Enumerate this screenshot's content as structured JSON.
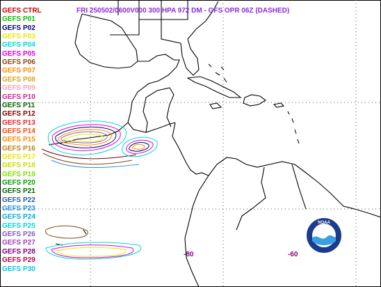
{
  "title": "FRI 250502/0600V000  300 HPA 972 DM - GFS OPR 06Z (DASHED)",
  "legend": [
    {
      "label": "GEFS CTRL",
      "color": "#d00000"
    },
    {
      "label": "GEFS P01",
      "color": "#00c000"
    },
    {
      "label": "GEFS P02",
      "color": "#000080"
    },
    {
      "label": "GEFS P03",
      "color": "#e8e800"
    },
    {
      "label": "GEFS P04",
      "color": "#00d8d8"
    },
    {
      "label": "GEFS P05",
      "color": "#e000e0"
    },
    {
      "label": "GEFS P06",
      "color": "#8b4513"
    },
    {
      "label": "GEFS P07",
      "color": "#ff8c00"
    },
    {
      "label": "GEFS P08",
      "color": "#daa520"
    },
    {
      "label": "GEFS P09",
      "color": "#ffa0b4"
    },
    {
      "label": "GEFS P10",
      "color": "#d02090"
    },
    {
      "label": "GEFS P11",
      "color": "#006400"
    },
    {
      "label": "GEFS P12",
      "color": "#800000"
    },
    {
      "label": "GEFS P13",
      "color": "#ff2020"
    },
    {
      "label": "GEFS P14",
      "color": "#ff4500"
    },
    {
      "label": "GEFS P15",
      "color": "#ff8c00"
    },
    {
      "label": "GEFS P16",
      "color": "#b8860b"
    },
    {
      "label": "GEFS P17",
      "color": "#e8e800"
    },
    {
      "label": "GEFS P18",
      "color": "#c8e000"
    },
    {
      "label": "GEFS P19",
      "color": "#80e000"
    },
    {
      "label": "GEFS P20",
      "color": "#00a000"
    },
    {
      "label": "GEFS P21",
      "color": "#006400"
    },
    {
      "label": "GEFS P22",
      "color": "#2060a0"
    },
    {
      "label": "GEFS P23",
      "color": "#2090e0"
    },
    {
      "label": "GEFS P24",
      "color": "#00b0e0"
    },
    {
      "label": "GEFS P25",
      "color": "#00d8d8"
    },
    {
      "label": "GEFS P26",
      "color": "#8060c0"
    },
    {
      "label": "GEFS P27",
      "color": "#a040c0"
    },
    {
      "label": "GEFS P28",
      "color": "#800080"
    },
    {
      "label": "GEFS P29",
      "color": "#c00040"
    },
    {
      "label": "GEFS P30",
      "color": "#00c8e0"
    }
  ],
  "lon_labels": [
    "-80",
    "-60"
  ],
  "logo": {
    "text": "NOAA",
    "ring": "#1a3c8c",
    "inner": "#3aa0e0"
  }
}
